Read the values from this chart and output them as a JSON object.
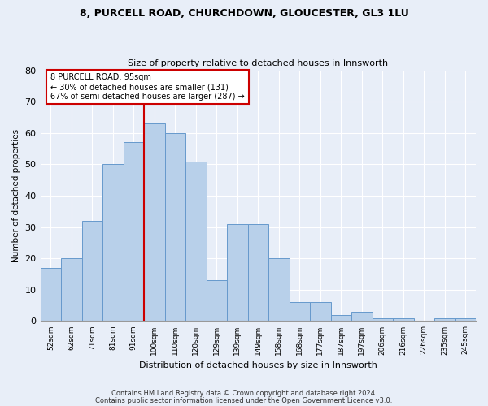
{
  "title1": "8, PURCELL ROAD, CHURCHDOWN, GLOUCESTER, GL3 1LU",
  "title2": "Size of property relative to detached houses in Innsworth",
  "xlabel": "Distribution of detached houses by size in Innsworth",
  "ylabel": "Number of detached properties",
  "bar_labels": [
    "52sqm",
    "62sqm",
    "71sqm",
    "81sqm",
    "91sqm",
    "100sqm",
    "110sqm",
    "120sqm",
    "129sqm",
    "139sqm",
    "149sqm",
    "158sqm",
    "168sqm",
    "177sqm",
    "187sqm",
    "197sqm",
    "206sqm",
    "216sqm",
    "226sqm",
    "235sqm",
    "245sqm"
  ],
  "bar_values": [
    17,
    20,
    32,
    50,
    57,
    63,
    60,
    51,
    13,
    31,
    31,
    20,
    6,
    6,
    2,
    3,
    1,
    1,
    0,
    1,
    1
  ],
  "bar_color": "#b8d0ea",
  "bar_edge_color": "#6699cc",
  "vline_x": 4.5,
  "vline_color": "#cc0000",
  "annotation_title": "8 PURCELL ROAD: 95sqm",
  "annotation_line1": "← 30% of detached houses are smaller (131)",
  "annotation_line2": "67% of semi-detached houses are larger (287) →",
  "annotation_box_facecolor": "#ffffff",
  "annotation_box_edgecolor": "#cc0000",
  "ylim": [
    0,
    80
  ],
  "yticks": [
    0,
    10,
    20,
    30,
    40,
    50,
    60,
    70,
    80
  ],
  "footer1": "Contains HM Land Registry data © Crown copyright and database right 2024.",
  "footer2": "Contains public sector information licensed under the Open Government Licence v3.0.",
  "bg_color": "#e8eef8"
}
